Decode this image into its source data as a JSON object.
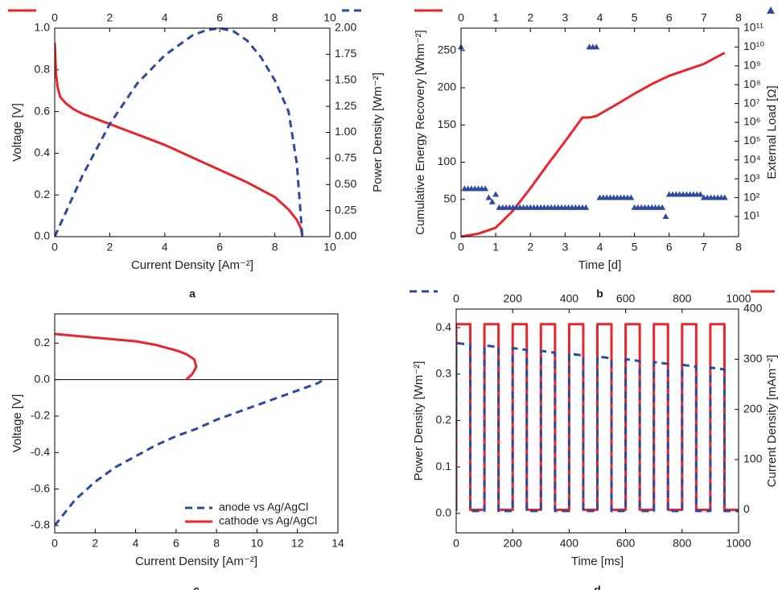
{
  "chart_data": [
    {
      "type": "line",
      "caption": "a",
      "x_label": "Current Density [Am⁻²]",
      "y_label": "Voltage [V]",
      "y2_label": "Power Density [Wm⁻²]",
      "xlim": [
        0,
        10
      ],
      "xticks": [
        0,
        2,
        4,
        6,
        8,
        10
      ],
      "x2lim": [
        0,
        10
      ],
      "x2ticks": [
        0,
        2,
        4,
        6,
        8,
        10
      ],
      "ylim": [
        0,
        1.0
      ],
      "yticks": [
        {
          "value": 0,
          "label": "0.0"
        },
        0.2,
        0.4,
        0.6,
        0.8,
        {
          "value": 1,
          "label": "1.0"
        }
      ],
      "y2lim": [
        0,
        2.0
      ],
      "y2ticks": [
        {
          "value": 0,
          "label": "0.00"
        },
        0.25,
        {
          "value": 0.5,
          "label": "0.50"
        },
        0.75,
        {
          "value": 1,
          "label": "1.00"
        },
        1.25,
        {
          "value": 1.5,
          "label": "1.50"
        },
        1.75,
        {
          "value": 2,
          "label": "2.00"
        }
      ],
      "series_keys": "top",
      "series": [
        {
          "color": "#e8262b",
          "line_style": "solid",
          "x": [
            0,
            0.05,
            0.1,
            0.2,
            0.4,
            0.7,
            1,
            1.5,
            2,
            3,
            4,
            5,
            6,
            7,
            8,
            8.5,
            8.8,
            8.95,
            9.0
          ],
          "values": [
            0.93,
            0.78,
            0.72,
            0.67,
            0.64,
            0.61,
            0.59,
            0.565,
            0.54,
            0.49,
            0.44,
            0.38,
            0.32,
            0.26,
            0.19,
            0.13,
            0.08,
            0.04,
            0.0
          ]
        },
        {
          "color": "#2e4a9e",
          "line_style": "dashed",
          "axis": "y2",
          "x": [
            0,
            1,
            2,
            3,
            4,
            5,
            5.5,
            6,
            6.5,
            7,
            7.5,
            8,
            8.5,
            8.8,
            9.0
          ],
          "values": [
            0,
            0.58,
            1.08,
            1.47,
            1.74,
            1.93,
            1.98,
            2.0,
            1.97,
            1.88,
            1.72,
            1.5,
            1.2,
            0.7,
            0
          ]
        }
      ]
    },
    {
      "type": "line",
      "caption": "b",
      "x_label": "Time [d]",
      "y_label": "Cumulative Energy Recovery [Whm⁻²]",
      "y2_label": "External Load [Ω]",
      "xlim": [
        0,
        8
      ],
      "xticks": [
        0,
        1,
        2,
        3,
        4,
        5,
        6,
        7,
        8
      ],
      "x2lim": [
        0,
        8
      ],
      "x2ticks": [
        0,
        1,
        2,
        3,
        4,
        5,
        6,
        7,
        8
      ],
      "ylim": [
        0,
        280
      ],
      "yticks": [
        0,
        50,
        100,
        150,
        200,
        250
      ],
      "y2lim": [
        0.85,
        100000000000
      ],
      "y2log": true,
      "y2ticks": [
        {
          "value": 10,
          "label": "10¹"
        },
        {
          "value": 100,
          "label": "10²"
        },
        {
          "value": 1000,
          "label": "10³"
        },
        {
          "value": 10000,
          "label": "10⁴"
        },
        {
          "value": 100000,
          "label": "10⁵"
        },
        {
          "value": 1000000,
          "label": "10⁶"
        },
        {
          "value": 10000000,
          "label": "10⁷"
        },
        {
          "value": 100000000,
          "label": "10⁸"
        },
        {
          "value": 1000000000,
          "label": "10⁹"
        },
        {
          "value": 10000000000,
          "label": "10¹⁰"
        },
        {
          "value": 100000000000,
          "label": "10¹¹"
        }
      ],
      "series_keys": "top",
      "series": [
        {
          "color": "#e8262b",
          "line_style": "solid",
          "x": [
            0,
            0.5,
            1,
            1.5,
            2,
            2.5,
            3,
            3.5,
            3.7,
            3.9,
            4.5,
            5,
            5.5,
            6,
            6.5,
            7,
            7.6
          ],
          "values": [
            0,
            4,
            12,
            35,
            65,
            97,
            128,
            160,
            160,
            162,
            178,
            192,
            205,
            216,
            224,
            232,
            247
          ]
        },
        {
          "color": "#2e4a9e",
          "marker": "triangle",
          "axis": "y2",
          "x": [
            0,
            0.1,
            0.2,
            0.3,
            0.4,
            0.5,
            0.6,
            0.7,
            0.8,
            0.9,
            1.0,
            1.1,
            1.2,
            1.3,
            1.4,
            1.5,
            1.6,
            1.7,
            1.8,
            1.9,
            2.0,
            2.1,
            2.2,
            2.3,
            2.4,
            2.5,
            2.6,
            2.7,
            2.8,
            2.9,
            3.0,
            3.1,
            3.2,
            3.3,
            3.4,
            3.5,
            3.6,
            3.7,
            3.8,
            3.9,
            4.0,
            4.1,
            4.2,
            4.3,
            4.4,
            4.5,
            4.6,
            4.7,
            4.8,
            4.9,
            5.0,
            5.1,
            5.2,
            5.3,
            5.4,
            5.5,
            5.6,
            5.7,
            5.8,
            5.9,
            6.0,
            6.1,
            6.2,
            6.3,
            6.4,
            6.5,
            6.6,
            6.7,
            6.8,
            6.9,
            7.0,
            7.1,
            7.2,
            7.3,
            7.4,
            7.5,
            7.6
          ],
          "values": [
            10000000000,
            300,
            300,
            300,
            300,
            300,
            300,
            300,
            100,
            60,
            150,
            30,
            30,
            30,
            30,
            30,
            30,
            30,
            30,
            30,
            30,
            30,
            30,
            30,
            30,
            30,
            30,
            30,
            30,
            30,
            30,
            30,
            30,
            30,
            30,
            30,
            30,
            10000000000,
            10000000000,
            10000000000,
            100,
            100,
            100,
            100,
            100,
            100,
            100,
            100,
            100,
            100,
            30,
            30,
            30,
            30,
            30,
            30,
            30,
            30,
            30,
            10,
            150,
            150,
            150,
            150,
            150,
            150,
            150,
            150,
            150,
            150,
            100,
            100,
            100,
            100,
            100,
            100,
            100
          ]
        }
      ]
    },
    {
      "type": "line",
      "caption": "c",
      "x_label": "Current Density [Am⁻²]",
      "y_label": "Voltage [V]",
      "xlim": [
        0,
        14
      ],
      "xticks": [
        0,
        2,
        4,
        6,
        8,
        10,
        12,
        14
      ],
      "ylim": [
        -0.84,
        0.36
      ],
      "yticks": [
        -0.8,
        -0.6,
        -0.4,
        -0.2,
        {
          "value": 0,
          "label": "0.0"
        },
        0.2
      ],
      "zero_line": true,
      "legend": "lower right",
      "series": [
        {
          "name": "anode vs Ag/AgCl",
          "color": "#2e4a9e",
          "line_style": "dashed",
          "x": [
            0,
            1,
            2,
            3,
            4,
            5,
            6,
            7,
            8,
            9,
            10,
            11,
            12,
            13,
            13.3
          ],
          "values": [
            -0.8,
            -0.66,
            -0.56,
            -0.48,
            -0.42,
            -0.36,
            -0.31,
            -0.27,
            -0.22,
            -0.18,
            -0.14,
            -0.1,
            -0.06,
            -0.02,
            0
          ]
        },
        {
          "name": "cathode vs Ag/AgCl",
          "color": "#e8262b",
          "line_style": "solid",
          "x": [
            0,
            1,
            2,
            3,
            4,
            5,
            6,
            6.5,
            6.9,
            7.0,
            6.8,
            6.5
          ],
          "values": [
            0.25,
            0.24,
            0.23,
            0.22,
            0.21,
            0.19,
            0.16,
            0.14,
            0.11,
            0.07,
            0.03,
            0.0
          ]
        }
      ]
    },
    {
      "type": "line",
      "caption": "d",
      "x_label": "Time [ms]",
      "y_label": "Power Density [Wm⁻²]",
      "y2_label": "Current Density [mAm⁻²]",
      "xlim": [
        0,
        1000
      ],
      "xticks": [
        0,
        200,
        400,
        600,
        800,
        1000
      ],
      "x2lim": [
        0,
        1000
      ],
      "x2ticks": [
        0,
        200,
        400,
        600,
        800,
        1000
      ],
      "ylim": [
        -0.042,
        0.44
      ],
      "yticks": [
        {
          "value": 0,
          "label": "0.0"
        },
        0.1,
        0.2,
        0.3,
        0.4
      ],
      "y2lim": [
        -46,
        400
      ],
      "y2ticks": [
        0,
        100,
        200,
        300,
        400
      ],
      "series_keys": "top",
      "series": [
        {
          "color": "#e8262b",
          "line_style": "solid",
          "axis": "y2",
          "x": [
            0,
            0,
            50,
            50,
            100,
            100,
            150,
            150,
            200,
            200,
            250,
            250,
            300,
            300,
            350,
            350,
            400,
            400,
            450,
            450,
            500,
            500,
            550,
            550,
            600,
            600,
            650,
            650,
            700,
            700,
            750,
            750,
            800,
            800,
            850,
            850,
            900,
            900,
            950,
            950,
            1000
          ],
          "values": [
            0,
            370,
            370,
            0,
            0,
            370,
            370,
            0,
            0,
            370,
            370,
            0,
            0,
            370,
            370,
            0,
            0,
            370,
            370,
            0,
            0,
            370,
            370,
            0,
            0,
            370,
            370,
            0,
            0,
            370,
            370,
            0,
            0,
            370,
            370,
            0,
            0,
            370,
            370,
            0,
            0
          ]
        },
        {
          "color": "#2e4a9e",
          "line_style": "dashed",
          "x": [
            0,
            0,
            50,
            50,
            100,
            100,
            150,
            150,
            200,
            200,
            250,
            250,
            300,
            300,
            350,
            350,
            400,
            400,
            450,
            450,
            500,
            500,
            550,
            550,
            600,
            600,
            650,
            650,
            700,
            700,
            750,
            750,
            800,
            800,
            850,
            850,
            900,
            900,
            950,
            950,
            1000
          ],
          "values": [
            0.005,
            0.367,
            0.363,
            0.005,
            0.005,
            0.362,
            0.358,
            0.005,
            0.005,
            0.356,
            0.352,
            0.005,
            0.005,
            0.35,
            0.346,
            0.005,
            0.005,
            0.344,
            0.34,
            0.005,
            0.005,
            0.338,
            0.334,
            0.005,
            0.005,
            0.332,
            0.328,
            0.005,
            0.005,
            0.326,
            0.322,
            0.005,
            0.005,
            0.32,
            0.316,
            0.005,
            0.005,
            0.314,
            0.31,
            0.005,
            0.005
          ]
        }
      ]
    }
  ]
}
